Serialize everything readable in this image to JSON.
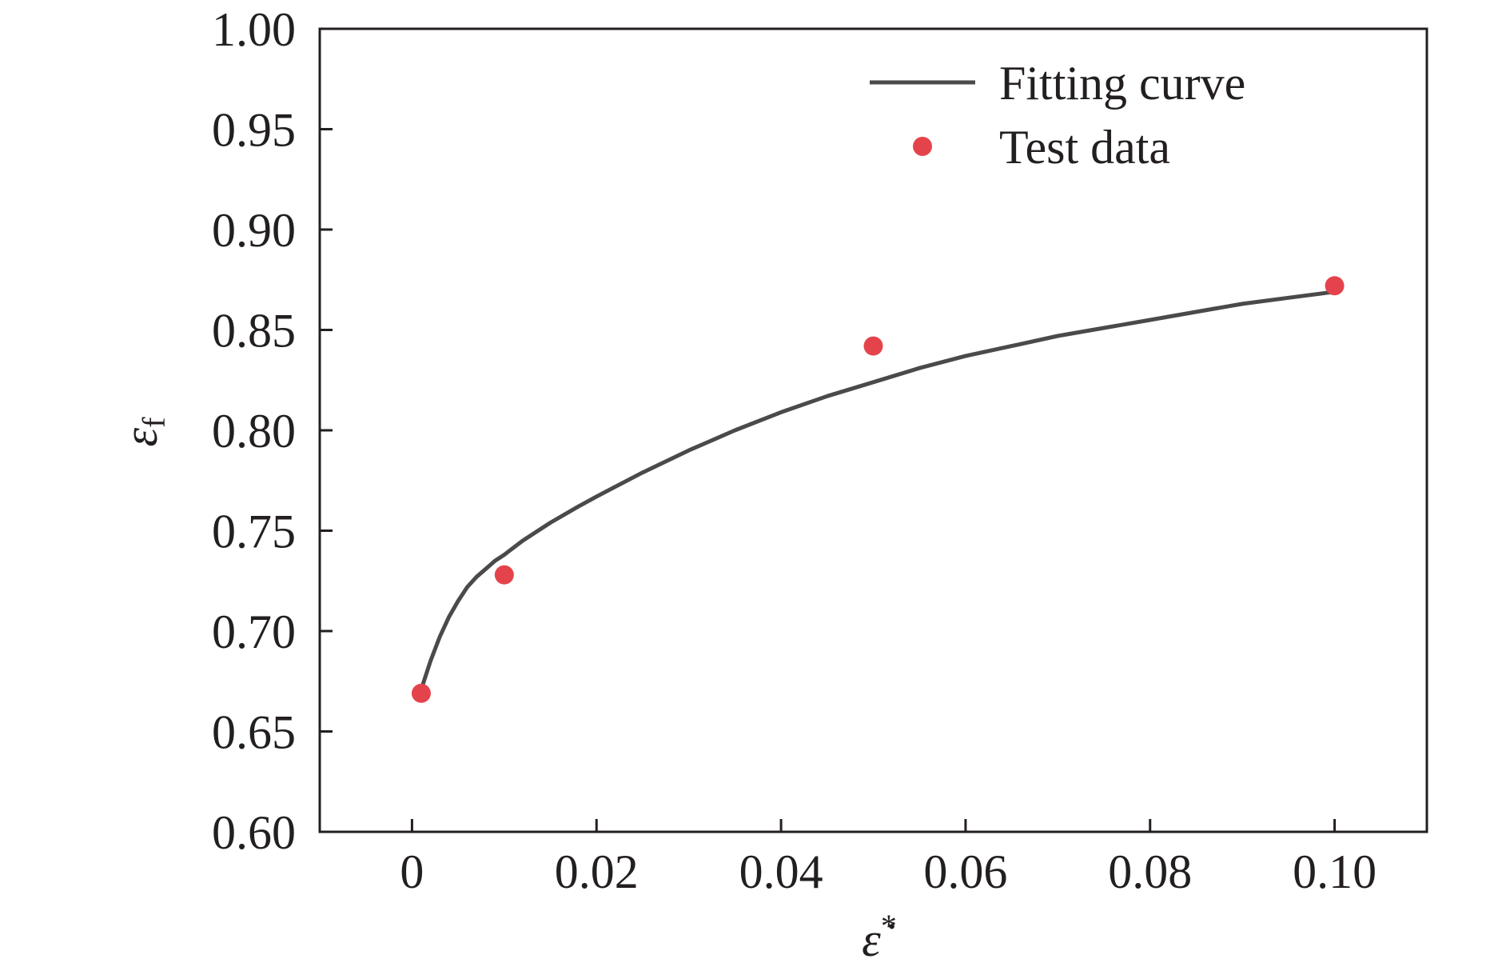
{
  "chart_data": {
    "type": "line",
    "title": "",
    "xlabel": "ε̇",
    "xlabel_sup": "*",
    "ylabel": "ε",
    "ylabel_sub": "f",
    "xlim": [
      -0.01,
      0.11
    ],
    "ylim": [
      0.6,
      1.0
    ],
    "x_ticks": [
      0,
      0.02,
      0.04,
      0.06,
      0.08,
      0.1
    ],
    "x_tick_labels": [
      "0",
      "0.02",
      "0.04",
      "0.06",
      "0.08",
      "0.10"
    ],
    "y_ticks": [
      0.6,
      0.65,
      0.7,
      0.75,
      0.8,
      0.85,
      0.9,
      0.95,
      1.0
    ],
    "y_tick_labels": [
      "0.60",
      "0.65",
      "0.70",
      "0.75",
      "0.80",
      "0.85",
      "0.90",
      "0.95",
      "1.00"
    ],
    "grid": false,
    "legend_position": "top-right",
    "series": [
      {
        "name": "Fitting curve",
        "kind": "line",
        "color": "#4a4a4a",
        "x": [
          0.001,
          0.002,
          0.003,
          0.004,
          0.005,
          0.006,
          0.007,
          0.008,
          0.009,
          0.01,
          0.012,
          0.015,
          0.018,
          0.02,
          0.025,
          0.03,
          0.035,
          0.04,
          0.045,
          0.05,
          0.055,
          0.06,
          0.065,
          0.07,
          0.075,
          0.08,
          0.085,
          0.09,
          0.095,
          0.1
        ],
        "y": [
          0.671,
          0.685,
          0.697,
          0.707,
          0.715,
          0.722,
          0.727,
          0.731,
          0.735,
          0.738,
          0.745,
          0.754,
          0.762,
          0.767,
          0.779,
          0.79,
          0.8,
          0.809,
          0.817,
          0.824,
          0.831,
          0.837,
          0.842,
          0.847,
          0.851,
          0.855,
          0.859,
          0.863,
          0.866,
          0.869
        ]
      },
      {
        "name": "Test data",
        "kind": "scatter",
        "color": "#e5434b",
        "x": [
          0.001,
          0.01,
          0.05,
          0.1
        ],
        "y": [
          0.669,
          0.728,
          0.842,
          0.872
        ]
      }
    ]
  }
}
